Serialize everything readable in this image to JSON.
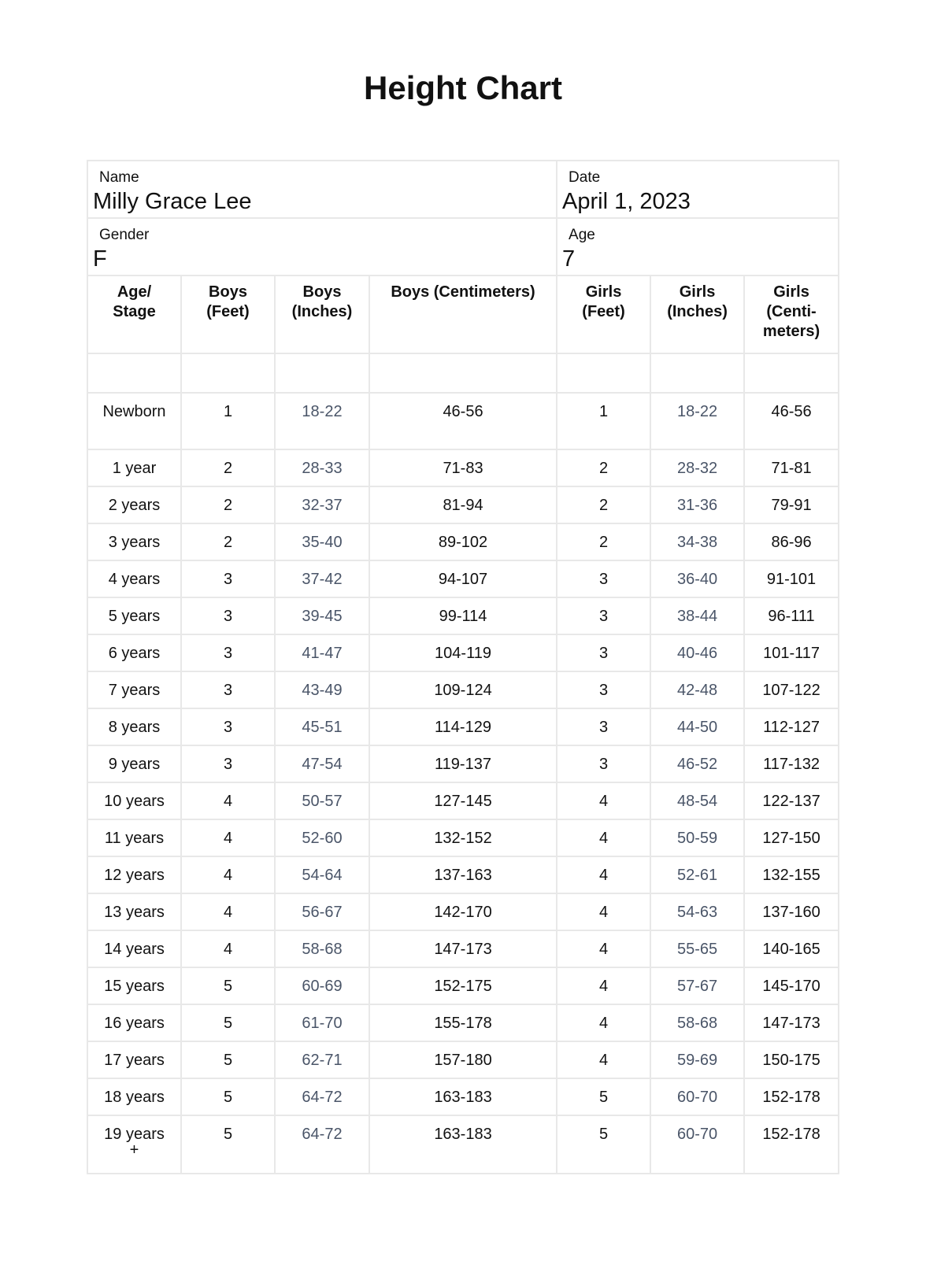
{
  "title": "Height Chart",
  "info": {
    "name_label": "Name",
    "name_value": "Milly Grace Lee",
    "date_label": "Date",
    "date_value": "April 1, 2023",
    "gender_label": "Gender",
    "gender_value": "F",
    "age_label": "Age",
    "age_value": "7"
  },
  "colors": {
    "inches_text": "#4a5568",
    "border": "#e8e8e8"
  },
  "table": {
    "headers": [
      "Age/ Stage",
      "Boys (Feet)",
      "Boys (Inches)",
      "Boys (Centimeters)",
      "Girls (Feet)",
      "Girls (Inches)",
      "Girls (Centi-meters)"
    ],
    "rows": [
      [
        "Newborn",
        "1",
        "18-22",
        "46-56",
        "1",
        "18-22",
        "46-56"
      ],
      [
        "1 year",
        "2",
        "28-33",
        "71-83",
        "2",
        "28-32",
        "71-81"
      ],
      [
        "2 years",
        "2",
        "32-37",
        "81-94",
        "2",
        "31-36",
        "79-91"
      ],
      [
        "3 years",
        "2",
        "35-40",
        "89-102",
        "2",
        "34-38",
        "86-96"
      ],
      [
        "4 years",
        "3",
        "37-42",
        "94-107",
        "3",
        "36-40",
        "91-101"
      ],
      [
        "5 years",
        "3",
        "39-45",
        "99-114",
        "3",
        "38-44",
        "96-111"
      ],
      [
        "6 years",
        "3",
        "41-47",
        "104-119",
        "3",
        "40-46",
        "101-117"
      ],
      [
        "7 years",
        "3",
        "43-49",
        "109-124",
        "3",
        "42-48",
        "107-122"
      ],
      [
        "8 years",
        "3",
        "45-51",
        "114-129",
        "3",
        "44-50",
        "112-127"
      ],
      [
        "9 years",
        "3",
        "47-54",
        "119-137",
        "3",
        "46-52",
        "117-132"
      ],
      [
        "10 years",
        "4",
        "50-57",
        "127-145",
        "4",
        "48-54",
        "122-137"
      ],
      [
        "11 years",
        "4",
        "52-60",
        "132-152",
        "4",
        "50-59",
        "127-150"
      ],
      [
        "12 years",
        "4",
        "54-64",
        "137-163",
        "4",
        "52-61",
        "132-155"
      ],
      [
        "13 years",
        "4",
        "56-67",
        "142-170",
        "4",
        "54-63",
        "137-160"
      ],
      [
        "14 years",
        "4",
        "58-68",
        "147-173",
        "4",
        "55-65",
        "140-165"
      ],
      [
        "15 years",
        "5",
        "60-69",
        "152-175",
        "4",
        "57-67",
        "145-170"
      ],
      [
        "16 years",
        "5",
        "61-70",
        "155-178",
        "4",
        "58-68",
        "147-173"
      ],
      [
        "17 years",
        "5",
        "62-71",
        "157-180",
        "4",
        "59-69",
        "150-175"
      ],
      [
        "18 years",
        "5",
        "64-72",
        "163-183",
        "5",
        "60-70",
        "152-178"
      ],
      [
        "19 years +",
        "5",
        "64-72",
        "163-183",
        "5",
        "60-70",
        "152-178"
      ]
    ]
  }
}
